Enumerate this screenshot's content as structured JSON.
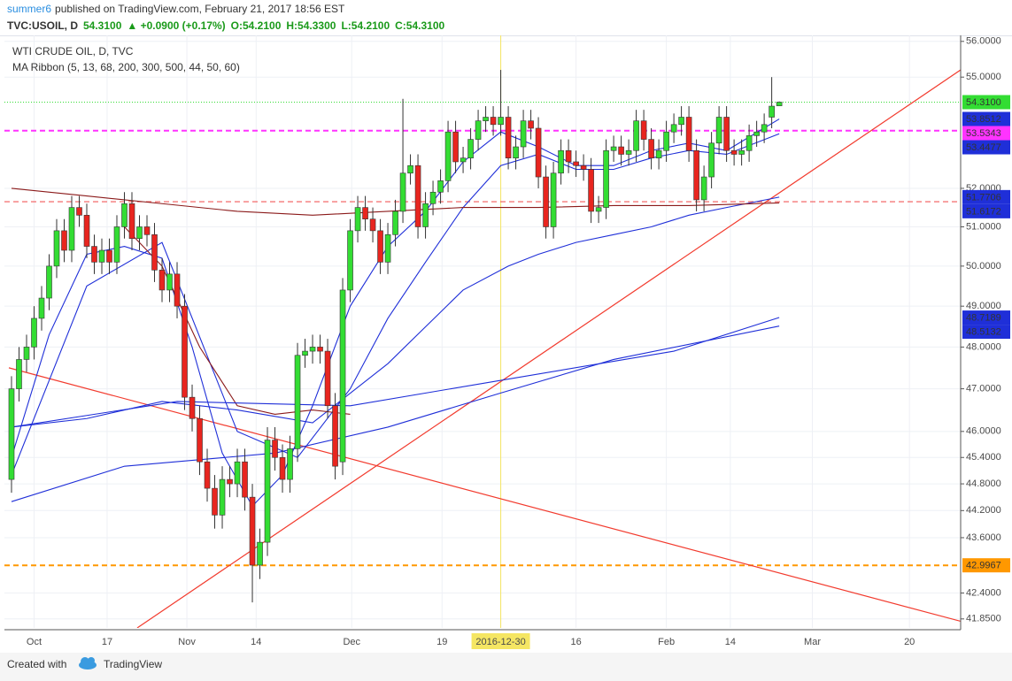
{
  "header": {
    "author": "summer6",
    "published": "published on TradingView.com, February 21, 2017 18:56 EST",
    "symbol": "TVC:USOIL, D",
    "price": "54.3100",
    "change": "▲ +0.0900 (+0.17%)",
    "open": "O:54.2100",
    "high": "H:54.3300",
    "low": "L:54.2100",
    "close": "C:54.3100"
  },
  "chart_data": {
    "type": "candlestick",
    "title": "WTI CRUDE OIL, D, TVC",
    "subtitle": "MA Ribbon (5, 13, 68, 200, 300, 500, 44, 50, 60)",
    "log_scale": true,
    "grid": true,
    "up_color": "#33dd33",
    "down_color": "#e8251f",
    "xlim": [
      -0.94,
      126.1
    ],
    "ylim": [
      41.66,
      56.17
    ],
    "xticks": [
      {
        "value": 3,
        "label": "Oct"
      },
      {
        "value": 12.7,
        "label": "17"
      },
      {
        "value": 23.3,
        "label": "Nov"
      },
      {
        "value": 32.5,
        "label": "14"
      },
      {
        "value": 45.2,
        "label": "Dec"
      },
      {
        "value": 57.2,
        "label": "19"
      },
      {
        "value": 65,
        "label": "2016-12-30"
      },
      {
        "value": 75,
        "label": "16"
      },
      {
        "value": 87,
        "label": "Feb"
      },
      {
        "value": 95.5,
        "label": "14"
      },
      {
        "value": 106.4,
        "label": "Mar"
      },
      {
        "value": 119.3,
        "label": "20"
      }
    ],
    "yticks": [
      {
        "value": 56,
        "label": "56.0000"
      },
      {
        "value": 55,
        "label": "55.0000"
      },
      {
        "value": 52,
        "label": "52.0000"
      },
      {
        "value": 51,
        "label": "51.0000"
      },
      {
        "value": 50,
        "label": "50.0000"
      },
      {
        "value": 49,
        "label": "49.0000"
      },
      {
        "value": 48,
        "label": "48.0000"
      },
      {
        "value": 47,
        "label": "47.0000"
      },
      {
        "value": 46,
        "label": "46.0000"
      },
      {
        "value": 45.4,
        "label": "45.4000"
      },
      {
        "value": 44.8,
        "label": "44.8000"
      },
      {
        "value": 44.2,
        "label": "44.2000"
      },
      {
        "value": 43.6,
        "label": "43.6000"
      },
      {
        "value": 42.4,
        "label": "42.4000"
      },
      {
        "value": 41.85,
        "label": "41.8500"
      }
    ],
    "open": [
      44.9,
      47.0,
      47.7,
      48.0,
      48.7,
      49.2,
      50.0,
      50.9,
      50.4,
      51.5,
      51.3,
      50.5,
      50.1,
      50.4,
      50.1,
      51.0,
      51.6,
      50.7,
      51.0,
      50.8,
      49.9,
      49.4,
      49.8,
      49.0,
      46.8,
      46.3,
      45.3,
      44.7,
      44.1,
      44.9,
      44.8,
      45.3,
      44.5,
      43.0,
      43.5,
      45.8,
      45.4,
      44.9,
      45.6,
      47.8,
      47.9,
      48.0,
      47.9,
      46.6,
      45.3,
      49.4,
      50.9,
      51.5,
      51.2,
      50.9,
      50.1,
      50.8,
      51.4,
      52.4,
      52.6,
      51.0,
      51.6,
      51.9,
      52.2,
      53.5,
      52.7,
      52.8,
      53.3,
      53.8,
      53.9,
      53.7,
      53.9,
      52.8,
      53.1,
      53.8,
      53.6,
      52.3,
      51.0,
      52.4,
      53.0,
      52.7,
      52.6,
      52.5,
      51.4,
      51.5,
      53.0,
      53.1,
      52.9,
      53.0,
      53.8,
      53.3,
      52.8,
      53.0,
      53.5,
      53.7,
      53.9,
      53.0,
      51.7,
      52.3,
      53.2,
      53.9,
      53.0,
      52.9,
      53.0,
      53.4,
      53.5,
      53.9,
      54.21
    ],
    "high": [
      47.3,
      48.0,
      48.3,
      49.0,
      49.5,
      50.3,
      51.2,
      51.2,
      51.8,
      51.8,
      51.6,
      50.8,
      50.7,
      50.7,
      51.3,
      51.9,
      51.9,
      51.3,
      51.3,
      51.1,
      50.2,
      50.1,
      50.1,
      49.3,
      47.1,
      46.6,
      45.6,
      45.0,
      45.2,
      45.2,
      45.6,
      45.6,
      44.8,
      43.8,
      46.1,
      46.1,
      45.7,
      45.9,
      48.1,
      48.2,
      48.3,
      48.3,
      48.2,
      46.9,
      49.7,
      51.2,
      51.8,
      51.8,
      51.5,
      51.2,
      51.1,
      51.7,
      54.4,
      52.9,
      52.9,
      51.9,
      52.2,
      52.5,
      53.8,
      53.8,
      53.1,
      53.6,
      54.1,
      54.2,
      54.2,
      55.2,
      54.2,
      53.4,
      54.1,
      54.1,
      53.9,
      52.6,
      52.7,
      53.3,
      53.3,
      53.0,
      52.9,
      52.8,
      51.8,
      53.3,
      53.4,
      53.4,
      53.3,
      54.1,
      54.1,
      53.6,
      53.3,
      53.8,
      54.0,
      54.2,
      54.2,
      53.3,
      52.6,
      53.5,
      54.2,
      54.2,
      53.3,
      53.3,
      53.7,
      53.8,
      54.0,
      55.0,
      54.33
    ],
    "low": [
      44.6,
      46.7,
      47.4,
      47.7,
      48.4,
      48.9,
      49.7,
      50.1,
      50.1,
      51.0,
      50.2,
      49.8,
      49.8,
      49.8,
      49.8,
      50.7,
      50.4,
      50.4,
      50.5,
      49.6,
      49.1,
      49.1,
      48.7,
      46.5,
      46.0,
      45.0,
      44.4,
      43.8,
      43.8,
      44.5,
      44.5,
      44.2,
      42.2,
      42.7,
      43.2,
      45.1,
      44.6,
      44.6,
      45.3,
      47.5,
      47.6,
      47.6,
      46.3,
      44.9,
      45.0,
      49.1,
      50.6,
      50.9,
      50.6,
      49.8,
      49.8,
      50.5,
      51.1,
      52.1,
      50.7,
      50.7,
      51.3,
      51.6,
      51.9,
      52.4,
      52.4,
      52.5,
      53.0,
      53.5,
      53.4,
      53.4,
      52.5,
      52.5,
      52.8,
      53.3,
      52.0,
      50.7,
      50.7,
      52.1,
      52.4,
      52.3,
      52.2,
      51.1,
      51.1,
      51.2,
      52.7,
      52.6,
      52.6,
      52.7,
      53.0,
      52.5,
      52.5,
      52.7,
      53.2,
      53.4,
      52.7,
      51.4,
      51.4,
      52.0,
      52.9,
      52.7,
      52.6,
      52.6,
      52.7,
      53.1,
      53.2,
      53.6,
      54.21
    ],
    "close": [
      47.0,
      47.7,
      48.0,
      48.7,
      49.2,
      50.0,
      50.9,
      50.4,
      51.5,
      51.3,
      50.5,
      50.1,
      50.4,
      50.1,
      51.0,
      51.6,
      50.7,
      51.0,
      50.8,
      49.9,
      49.4,
      49.8,
      49.0,
      46.8,
      46.3,
      45.3,
      44.7,
      44.1,
      44.9,
      44.8,
      45.3,
      44.5,
      43.0,
      43.5,
      45.8,
      45.4,
      44.9,
      45.6,
      47.8,
      47.9,
      48.0,
      47.9,
      46.6,
      45.2,
      49.4,
      50.9,
      51.5,
      51.2,
      50.9,
      50.1,
      50.8,
      51.4,
      52.4,
      52.6,
      51.0,
      51.6,
      51.9,
      52.2,
      53.5,
      52.7,
      52.8,
      53.3,
      53.8,
      53.9,
      53.7,
      53.9,
      52.8,
      53.1,
      53.8,
      53.6,
      52.3,
      51.0,
      52.4,
      53.0,
      52.7,
      52.6,
      52.5,
      51.4,
      51.5,
      53.0,
      53.1,
      52.9,
      53.0,
      53.8,
      53.3,
      52.8,
      53.0,
      53.5,
      53.7,
      53.9,
      53.0,
      51.7,
      52.3,
      53.2,
      53.9,
      53.0,
      52.9,
      53.0,
      53.4,
      53.5,
      53.7,
      54.2,
      54.31
    ],
    "moving_averages": [
      {
        "color": "#1f2fd8",
        "x": [
          0,
          5,
          10,
          15,
          20,
          24,
          28,
          32,
          36,
          40,
          45,
          50,
          55,
          60,
          65,
          70,
          75,
          80,
          85,
          90,
          95,
          102
        ],
        "values": [
          45.4,
          48.3,
          50.3,
          50.5,
          50.2,
          48.0,
          45.5,
          44.3,
          45.0,
          46.6,
          49.0,
          50.5,
          51.4,
          52.7,
          53.5,
          53.1,
          52.6,
          52.6,
          53.0,
          53.2,
          53.0,
          53.85
        ]
      },
      {
        "color": "#1f2fd8",
        "x": [
          0,
          10,
          20,
          30,
          38,
          45,
          50,
          55,
          60,
          65,
          70,
          75,
          80,
          85,
          90,
          95,
          102
        ],
        "values": [
          45.0,
          49.5,
          50.6,
          46.0,
          45.4,
          47.0,
          48.7,
          50.1,
          51.5,
          52.6,
          52.9,
          52.5,
          52.5,
          52.8,
          53.0,
          52.9,
          53.45
        ]
      },
      {
        "color": "#1f2fd8",
        "x": [
          0,
          10,
          20,
          30,
          40,
          50,
          60,
          66,
          70,
          75,
          80,
          85,
          90,
          95,
          102
        ],
        "values": [
          46.1,
          46.3,
          46.7,
          46.5,
          46.2,
          47.6,
          49.4,
          50.0,
          50.3,
          50.6,
          50.8,
          51.0,
          51.3,
          51.5,
          51.77
        ]
      },
      {
        "color": "#8b1a1a",
        "x": [
          0,
          10,
          20,
          30,
          40,
          50,
          60,
          70,
          80,
          90,
          102
        ],
        "values": [
          52.0,
          51.8,
          51.6,
          51.4,
          51.3,
          51.4,
          51.5,
          51.5,
          51.55,
          51.55,
          51.62
        ]
      },
      {
        "color": "#8b1a1a",
        "x": [
          15,
          20,
          25,
          30,
          35,
          40,
          45
        ],
        "values": [
          51.0,
          50.0,
          48.0,
          46.6,
          46.4,
          46.5,
          46.4
        ]
      },
      {
        "color": "#1f2fd8",
        "x": [
          0,
          22,
          45,
          65,
          88,
          102
        ],
        "values": [
          46.1,
          46.7,
          46.6,
          47.2,
          47.9,
          48.72
        ]
      },
      {
        "color": "#1f2fd8",
        "x": [
          0,
          15,
          35,
          50,
          65,
          80,
          102
        ],
        "values": [
          44.4,
          45.2,
          45.5,
          46.1,
          46.9,
          47.7,
          48.51
        ]
      }
    ],
    "trendlines": [
      {
        "color": "#f23b2e",
        "x": [
          -0.35,
          126.1
        ],
        "y": [
          47.5,
          41.8
        ]
      },
      {
        "color": "#f23b2e",
        "x": [
          16.7,
          126.1
        ],
        "y": [
          41.66,
          55.2
        ]
      }
    ],
    "hlines": [
      {
        "value": 51.65,
        "color": "#f25a5a",
        "style": "dashed"
      }
    ],
    "vline": {
      "x": 65,
      "color": "#f5e663"
    },
    "price_labels": [
      {
        "value": 54.31,
        "label": "54.3100",
        "color": "#33dd33",
        "text_color": "#111111",
        "line": "dotted"
      },
      {
        "value": 53.8512,
        "label": "53.8512",
        "color": "#1f2fd8",
        "text_color": "#ffffff"
      },
      {
        "value": 53.5343,
        "label": "53.5343",
        "color": "#ff33ff",
        "text_color": "#ffffff",
        "line": "dashed"
      },
      {
        "value": 53.4477,
        "label": "53.4477",
        "color": "#1f2fd8",
        "text_color": "#ffffff"
      },
      {
        "value": 51.7706,
        "label": "51.7706",
        "color": "#1f2fd8",
        "text_color": "#ffffff"
      },
      {
        "value": 51.6172,
        "label": "51.6172",
        "color": "#1f2fd8",
        "text_color": "#ffffff"
      },
      {
        "value": 48.7189,
        "label": "48.7189",
        "color": "#1f2fd8",
        "text_color": "#ffffff"
      },
      {
        "value": 48.5132,
        "label": "48.5132",
        "color": "#1f2fd8",
        "text_color": "#ffffff"
      },
      {
        "value": 42.9967,
        "label": "42.9967",
        "color": "#ff9800",
        "text_color": "#111111",
        "line": "dashed"
      }
    ]
  },
  "footer": {
    "created": "Created with",
    "brand": "TradingView"
  }
}
